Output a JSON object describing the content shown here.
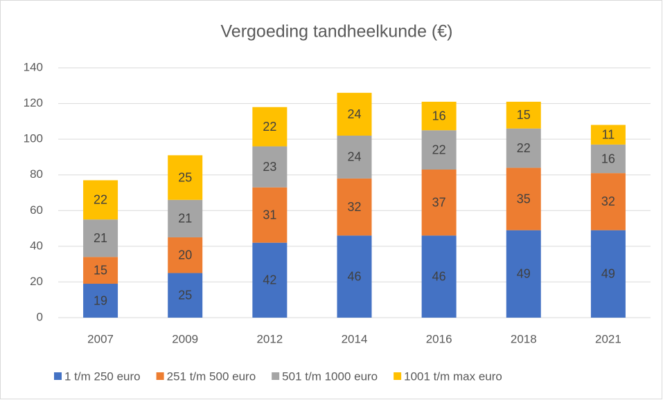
{
  "chart_data": {
    "type": "bar",
    "stacked": true,
    "title": "Vergoeding tandheelkunde (€)",
    "categories": [
      "2007",
      "2009",
      "2012",
      "2014",
      "2016",
      "2018",
      "2021"
    ],
    "series": [
      {
        "name": "1 t/m 250 euro",
        "color": "#4472c4",
        "values": [
          19,
          25,
          42,
          46,
          46,
          49,
          49
        ]
      },
      {
        "name": "251 t/m 500 euro",
        "color": "#ed7d31",
        "values": [
          15,
          20,
          31,
          32,
          37,
          35,
          32
        ]
      },
      {
        "name": "501 t/m 1000 euro",
        "color": "#a5a5a5",
        "values": [
          21,
          21,
          23,
          24,
          22,
          22,
          16
        ]
      },
      {
        "name": "1001 t/m max euro",
        "color": "#ffc000",
        "values": [
          22,
          25,
          22,
          24,
          16,
          15,
          11
        ]
      }
    ],
    "ylim": [
      0,
      140
    ],
    "yticks": [
      0,
      20,
      40,
      60,
      80,
      100,
      120,
      140
    ],
    "grid": true,
    "legend": "bottom"
  }
}
